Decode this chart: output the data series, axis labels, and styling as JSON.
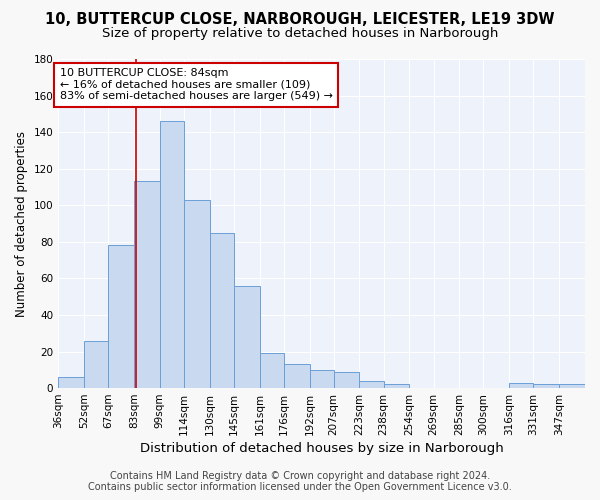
{
  "title1": "10, BUTTERCUP CLOSE, NARBOROUGH, LEICESTER, LE19 3DW",
  "title2": "Size of property relative to detached houses in Narborough",
  "xlabel": "Distribution of detached houses by size in Narborough",
  "ylabel": "Number of detached properties",
  "bar_labels": [
    "36sqm",
    "52sqm",
    "67sqm",
    "83sqm",
    "99sqm",
    "114sqm",
    "130sqm",
    "145sqm",
    "161sqm",
    "176sqm",
    "192sqm",
    "207sqm",
    "223sqm",
    "238sqm",
    "254sqm",
    "269sqm",
    "285sqm",
    "300sqm",
    "316sqm",
    "331sqm",
    "347sqm"
  ],
  "bar_values": [
    6,
    26,
    78,
    113,
    146,
    103,
    85,
    56,
    19,
    13,
    10,
    9,
    4,
    2,
    0,
    0,
    0,
    0,
    3,
    2,
    2
  ],
  "bar_color": "#c9d9f0",
  "bar_edge_color": "#6a9fd8",
  "property_line_x": 84,
  "property_line_color": "#cc0000",
  "annotation_text": "10 BUTTERCUP CLOSE: 84sqm\n← 16% of detached houses are smaller (109)\n83% of semi-detached houses are larger (549) →",
  "annotation_box_color": "#ffffff",
  "annotation_box_edge": "#cc0000",
  "ylim": [
    0,
    180
  ],
  "yticks": [
    0,
    20,
    40,
    60,
    80,
    100,
    120,
    140,
    160,
    180
  ],
  "bin_edges": [
    36,
    52,
    67,
    83,
    99,
    114,
    130,
    145,
    161,
    176,
    192,
    207,
    223,
    238,
    254,
    269,
    285,
    300,
    316,
    331,
    347,
    363
  ],
  "footer1": "Contains HM Land Registry data © Crown copyright and database right 2024.",
  "footer2": "Contains public sector information licensed under the Open Government Licence v3.0.",
  "fig_bg_color": "#f8f8f8",
  "plot_bg_color": "#eef2fb",
  "grid_color": "#ffffff",
  "title1_fontsize": 10.5,
  "title2_fontsize": 9.5,
  "xlabel_fontsize": 9.5,
  "ylabel_fontsize": 8.5,
  "tick_fontsize": 7.5,
  "annot_fontsize": 8,
  "footer_fontsize": 7
}
